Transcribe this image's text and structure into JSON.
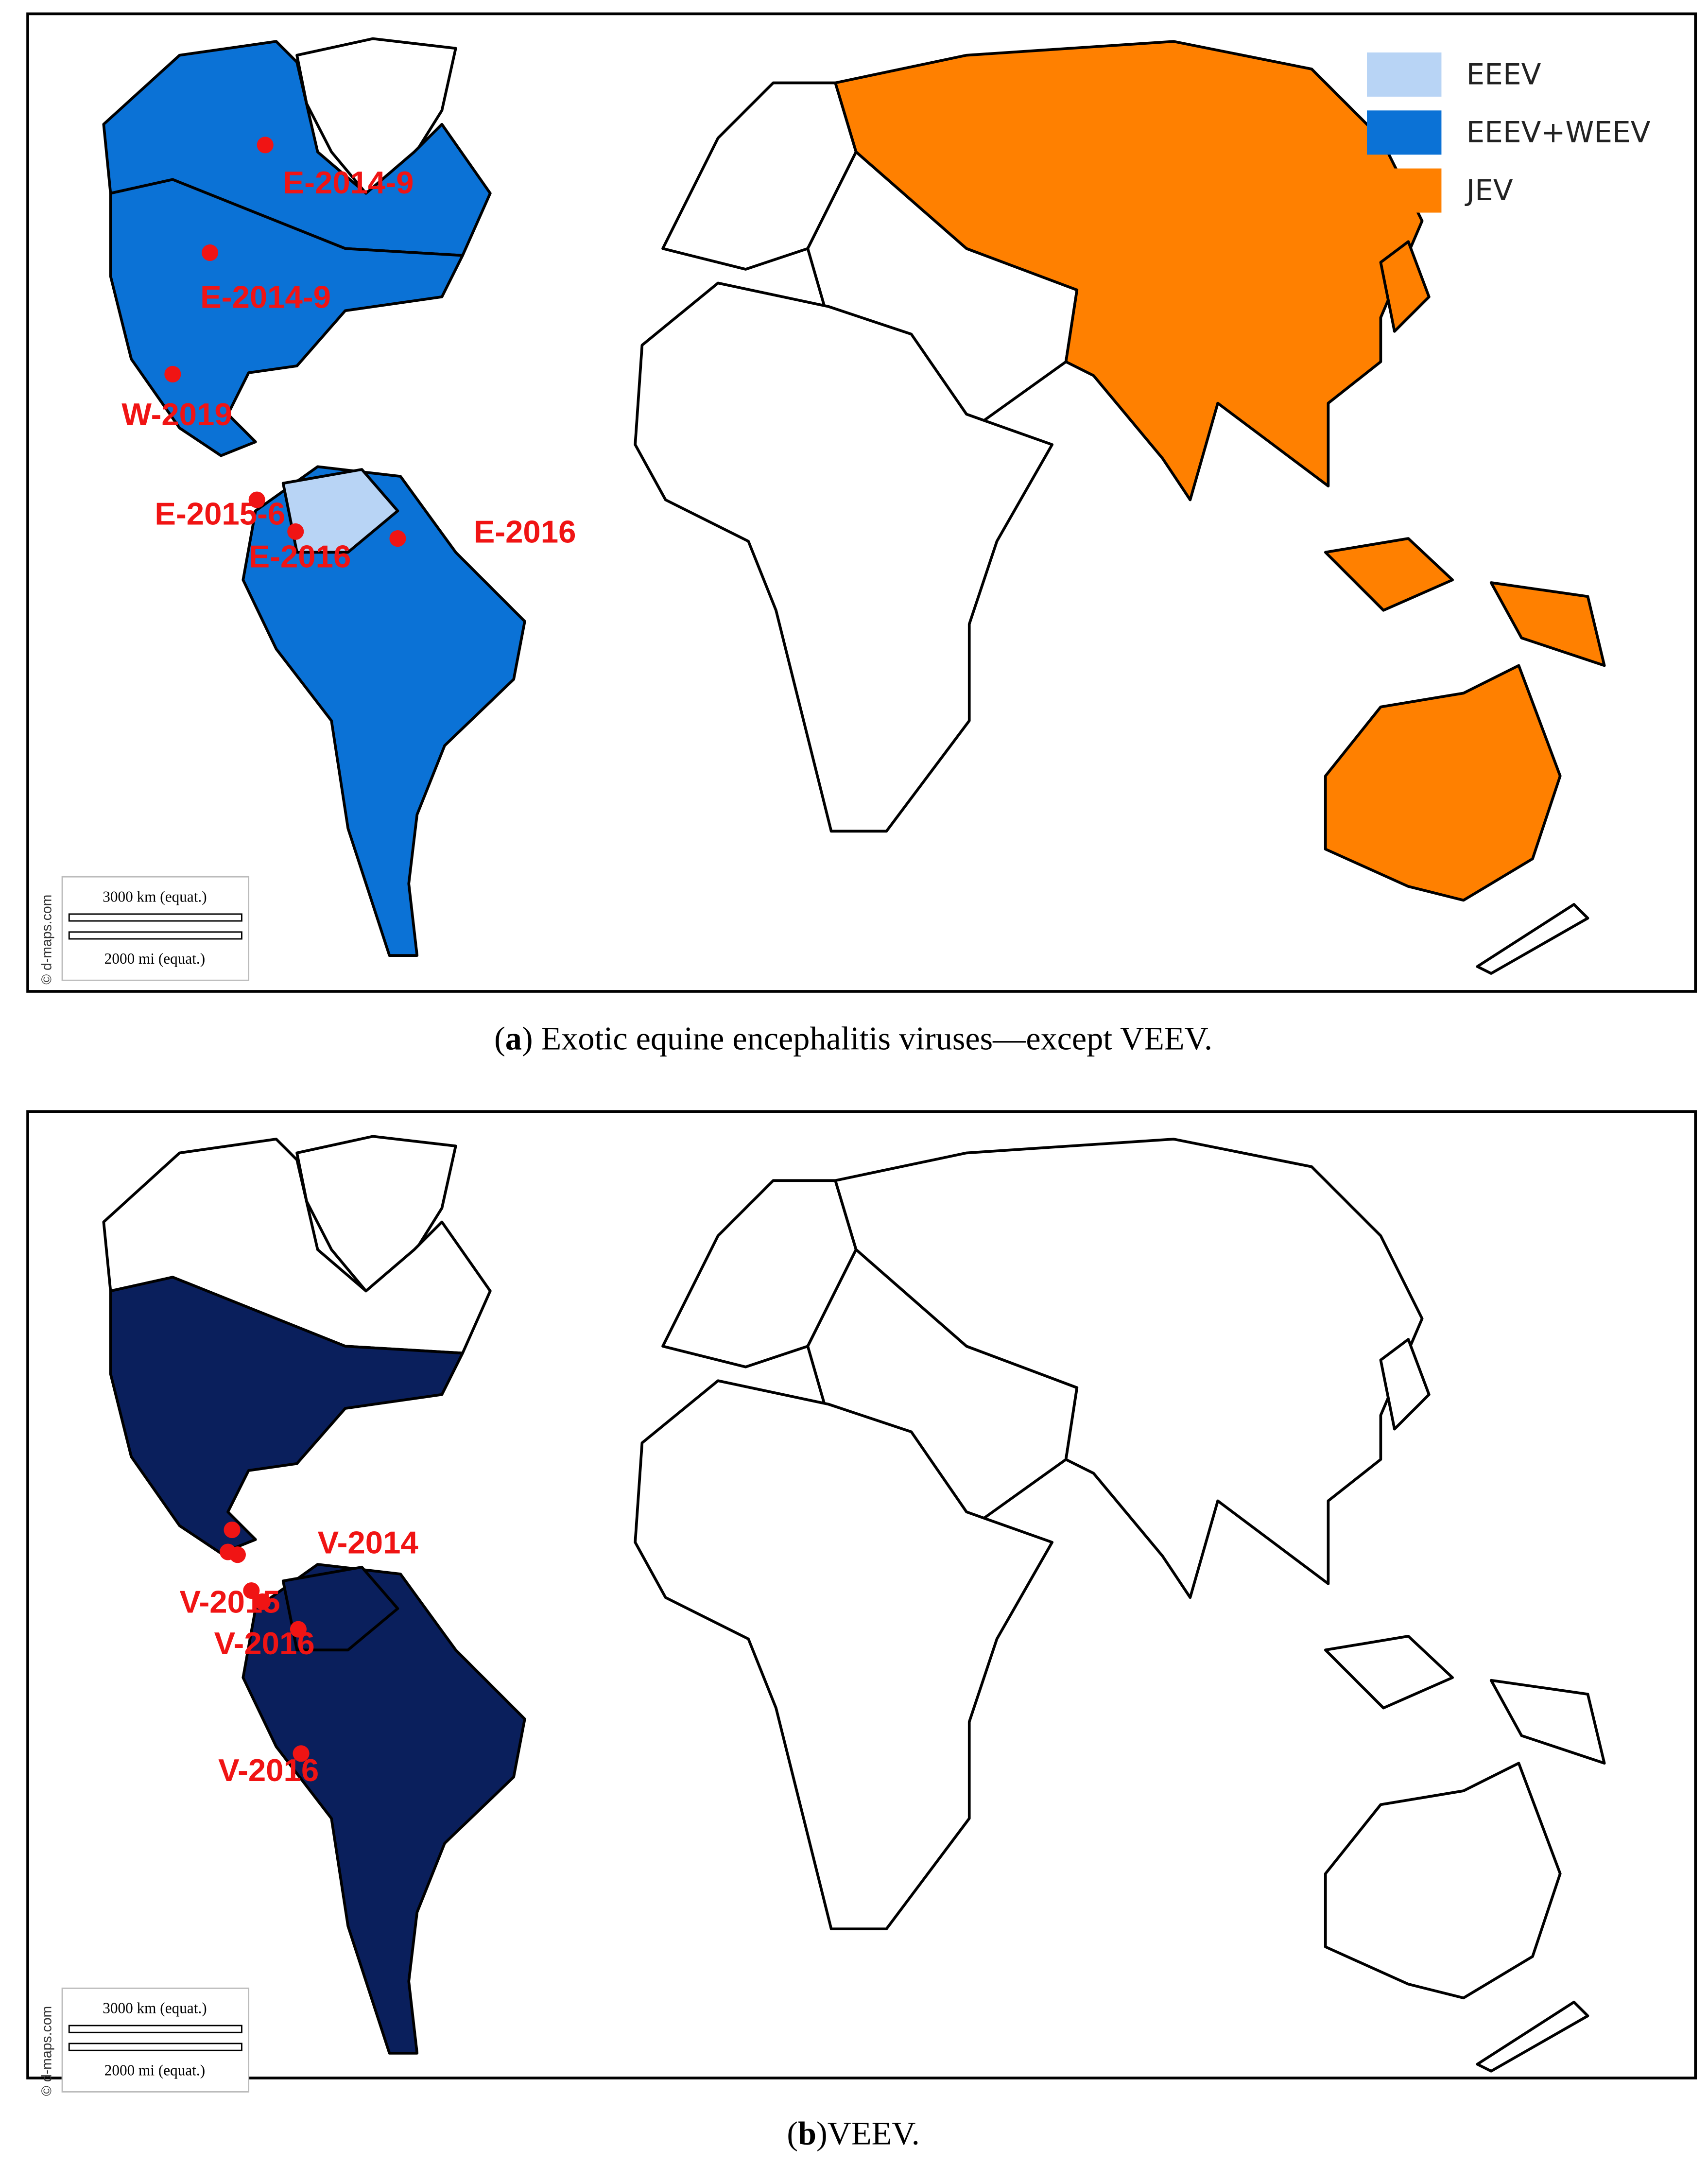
{
  "panels": [
    {
      "legend": [
        {
          "label": "EEEV"
        },
        {
          "label": "EEEV+WEEV"
        },
        {
          "label": "JEV"
        }
      ],
      "markers": [
        "E-2014-9",
        "E-2014-9",
        "W-2019",
        "E-2015-6",
        "E-2016",
        "E-2016"
      ],
      "credit": "© d-maps.com",
      "scale": {
        "km": "3000 km (equat.)",
        "mi": "2000 mi (equat.)"
      },
      "caption": {
        "open": "(",
        "letter": "a",
        "rest": ") Exotic equine encephalitis viruses—except VEEV."
      }
    },
    {
      "markers": [
        "V-2014",
        "V-2015",
        "V-2016",
        "V-2016"
      ],
      "credit": "© d-maps.com",
      "scale": {
        "km": "3000 km (equat.)",
        "mi": "2000 mi (equat.)"
      },
      "caption": {
        "open": "(",
        "letter": "b",
        "rest": ")VEEV."
      }
    }
  ]
}
